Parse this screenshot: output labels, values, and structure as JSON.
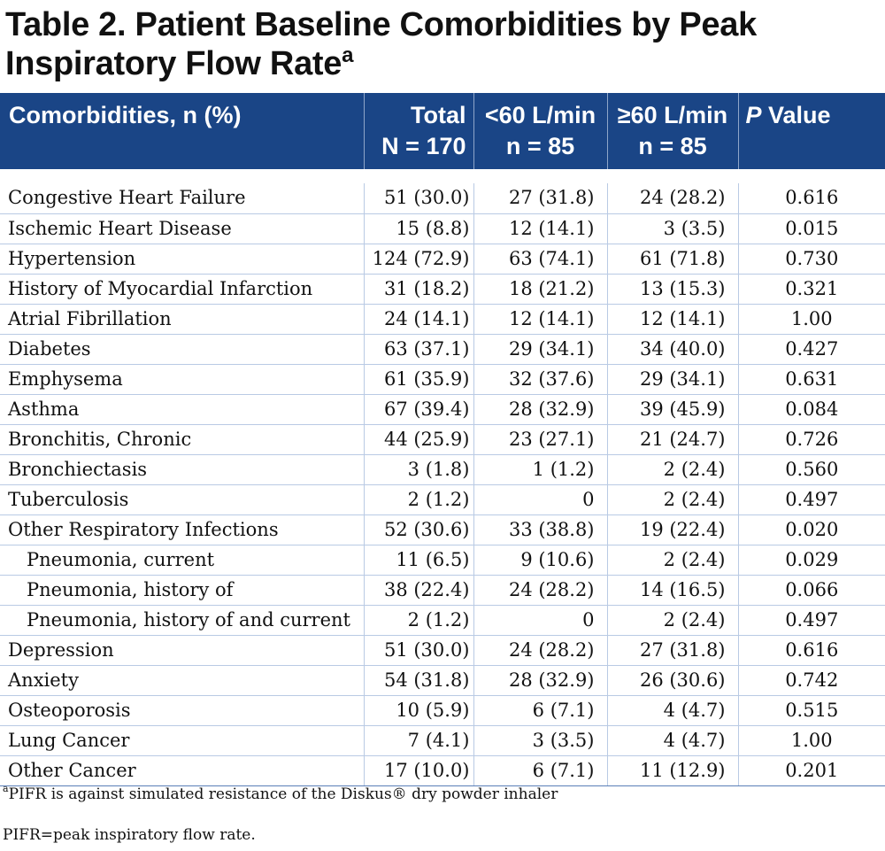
{
  "title": {
    "line1": "Table 2. Patient Baseline Comorbidities by Peak",
    "line2": "Inspiratory Flow Rate",
    "superscript": "a"
  },
  "header": {
    "col0": "Comorbidities, n (%)",
    "col1_line1": "Total",
    "col1_line2": "N = 170",
    "col2_line1": "<60 L/min",
    "col2_line2": "n = 85",
    "col3_line1": "≥60 L/min",
    "col3_line2": "n = 85",
    "col4_italic": "P",
    "col4_rest": " Value"
  },
  "rows": [
    {
      "label": "Congestive Heart Failure",
      "total": "51 (30.0)",
      "low": "27 (31.8)",
      "high": "24 (28.2)",
      "p": "0.616"
    },
    {
      "label": "Ischemic Heart Disease",
      "total": "15 (8.8)",
      "low": "12 (14.1)",
      "high": "3 (3.5)",
      "p": "0.015"
    },
    {
      "label": "Hypertension",
      "total": "124 (72.9)",
      "low": "63 (74.1)",
      "high": "61 (71.8)",
      "p": "0.730"
    },
    {
      "label": "History of Myocardial Infarction",
      "total": "31 (18.2)",
      "low": "18 (21.2)",
      "high": "13 (15.3)",
      "p": "0.321"
    },
    {
      "label": "Atrial Fibrillation",
      "total": "24 (14.1)",
      "low": "12 (14.1)",
      "high": "12 (14.1)",
      "p": "1.00"
    },
    {
      "label": "Diabetes",
      "total": "63 (37.1)",
      "low": "29 (34.1)",
      "high": "34 (40.0)",
      "p": "0.427"
    },
    {
      "label": "Emphysema",
      "total": "61 (35.9)",
      "low": "32 (37.6)",
      "high": "29 (34.1)",
      "p": "0.631"
    },
    {
      "label": "Asthma",
      "total": "67 (39.4)",
      "low": "28 (32.9)",
      "high": "39 (45.9)",
      "p": "0.084"
    },
    {
      "label": "Bronchitis, Chronic",
      "total": "44 (25.9)",
      "low": "23 (27.1)",
      "high": "21 (24.7)",
      "p": "0.726"
    },
    {
      "label": "Bronchiectasis",
      "total": "3 (1.8)",
      "low": "1 (1.2)",
      "high": "2 (2.4)",
      "p": "0.560"
    },
    {
      "label": "Tuberculosis",
      "total": "2 (1.2)",
      "low": "0",
      "high": "2 (2.4)",
      "p": "0.497"
    },
    {
      "label": "Other Respiratory Infections",
      "total": "52 (30.6)",
      "low": "33 (38.8)",
      "high": "19 (22.4)",
      "p": "0.020"
    },
    {
      "label": "Pneumonia, current",
      "total": "11 (6.5)",
      "low": "9 (10.6)",
      "high": "2 (2.4)",
      "p": "0.029",
      "indent": true
    },
    {
      "label": "Pneumonia, history of",
      "total": "38 (22.4)",
      "low": "24 (28.2)",
      "high": "14 (16.5)",
      "p": "0.066",
      "indent": true
    },
    {
      "label": "Pneumonia, history of and current",
      "total": "2 (1.2)",
      "low": "0",
      "high": "2 (2.4)",
      "p": "0.497",
      "indent": true
    },
    {
      "label": "Depression",
      "total": "51 (30.0)",
      "low": "24 (28.2)",
      "high": "27 (31.8)",
      "p": "0.616"
    },
    {
      "label": "Anxiety",
      "total": "54 (31.8)",
      "low": "28 (32.9)",
      "high": "26 (30.6)",
      "p": "0.742"
    },
    {
      "label": "Osteoporosis",
      "total": "10 (5.9)",
      "low": "6 (7.1)",
      "high": "4 (4.7)",
      "p": "0.515"
    },
    {
      "label": "Lung Cancer",
      "total": "7 (4.1)",
      "low": "3 (3.5)",
      "high": "4 (4.7)",
      "p": "1.00"
    },
    {
      "label": "Other Cancer",
      "total": "17 (10.0)",
      "low": "6 (7.1)",
      "high": "11 (12.9)",
      "p": "0.201"
    }
  ],
  "footnotes": {
    "a_marker": "a",
    "a_text": "PIFR is against simulated resistance of the Diskus® dry powder inhaler",
    "abbrev": "PIFR=peak inspiratory flow rate."
  },
  "colors": {
    "header_bg": "#1a4586",
    "row_rule": "#b9cae4"
  }
}
